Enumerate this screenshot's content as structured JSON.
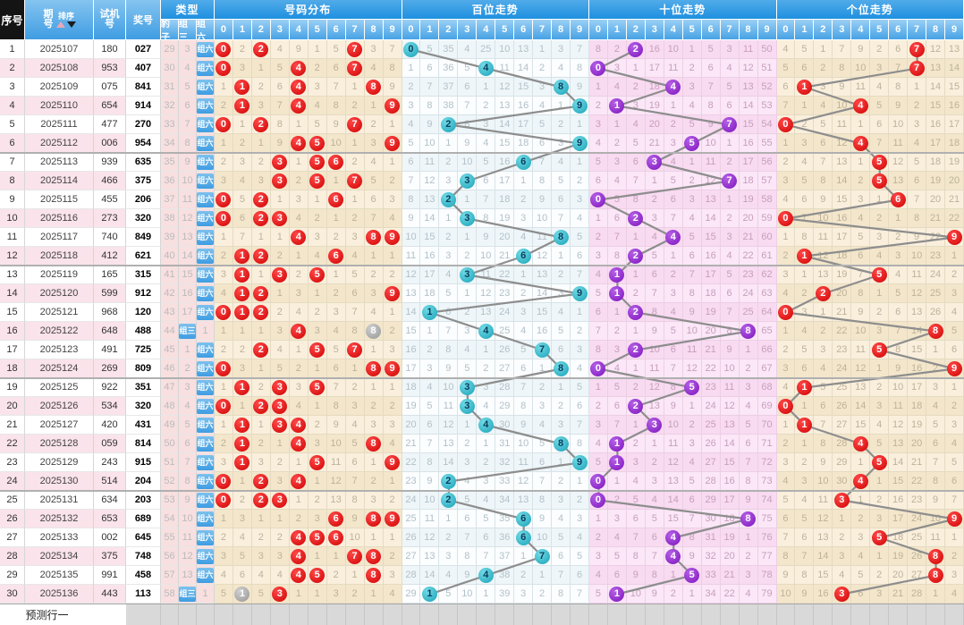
{
  "headers": {
    "seq": "序号",
    "issue": "期号",
    "sort": "排序",
    "test": "试机号",
    "prize": "奖号"
  },
  "type_header": {
    "title": "类型",
    "cols": [
      "豹子",
      "组三",
      "组六"
    ]
  },
  "sections": [
    {
      "key": "dist",
      "title": "号码分布"
    },
    {
      "key": "hundreds",
      "title": "百位走势"
    },
    {
      "key": "tens",
      "title": "十位走势"
    },
    {
      "key": "units",
      "title": "个位走势"
    }
  ],
  "digits": [
    "0",
    "1",
    "2",
    "3",
    "4",
    "5",
    "6",
    "7",
    "8",
    "9"
  ],
  "footer": {
    "prediction": "预测行一"
  },
  "seeds": {
    "dist": [
      0,
      2,
      0,
      4,
      9,
      1,
      5,
      0,
      3,
      7
    ],
    "hundreds": [
      0,
      5,
      35,
      4,
      25,
      10,
      13,
      1,
      3,
      7
    ],
    "tens": [
      8,
      2,
      0,
      16,
      10,
      1,
      5,
      3,
      11,
      50
    ],
    "units": [
      4,
      5,
      1,
      7,
      9,
      2,
      6,
      0,
      12,
      13
    ],
    "type": [
      29,
      3,
      0
    ]
  },
  "rows": [
    {
      "seq": "1",
      "issue": "2025107",
      "test": "180",
      "prize": "027"
    },
    {
      "seq": "2",
      "issue": "2025108",
      "test": "953",
      "prize": "407"
    },
    {
      "seq": "3",
      "issue": "2025109",
      "test": "075",
      "prize": "841"
    },
    {
      "seq": "4",
      "issue": "2025110",
      "test": "654",
      "prize": "914"
    },
    {
      "seq": "5",
      "issue": "2025111",
      "test": "477",
      "prize": "270"
    },
    {
      "seq": "6",
      "issue": "2025112",
      "test": "006",
      "prize": "954"
    },
    {
      "seq": "7",
      "issue": "2025113",
      "test": "939",
      "prize": "635"
    },
    {
      "seq": "8",
      "issue": "2025114",
      "test": "466",
      "prize": "375"
    },
    {
      "seq": "9",
      "issue": "2025115",
      "test": "455",
      "prize": "206"
    },
    {
      "seq": "10",
      "issue": "2025116",
      "test": "273",
      "prize": "320"
    },
    {
      "seq": "11",
      "issue": "2025117",
      "test": "740",
      "prize": "849"
    },
    {
      "seq": "12",
      "issue": "2025118",
      "test": "412",
      "prize": "621"
    },
    {
      "seq": "13",
      "issue": "2025119",
      "test": "165",
      "prize": "315"
    },
    {
      "seq": "14",
      "issue": "2025120",
      "test": "599",
      "prize": "912"
    },
    {
      "seq": "15",
      "issue": "2025121",
      "test": "968",
      "prize": "120"
    },
    {
      "seq": "16",
      "issue": "2025122",
      "test": "648",
      "prize": "488"
    },
    {
      "seq": "17",
      "issue": "2025123",
      "test": "491",
      "prize": "725"
    },
    {
      "seq": "18",
      "issue": "2025124",
      "test": "269",
      "prize": "809"
    },
    {
      "seq": "19",
      "issue": "2025125",
      "test": "922",
      "prize": "351"
    },
    {
      "seq": "20",
      "issue": "2025126",
      "test": "534",
      "prize": "320"
    },
    {
      "seq": "21",
      "issue": "2025127",
      "test": "420",
      "prize": "431"
    },
    {
      "seq": "22",
      "issue": "2025128",
      "test": "059",
      "prize": "814"
    },
    {
      "seq": "23",
      "issue": "2025129",
      "test": "243",
      "prize": "915"
    },
    {
      "seq": "24",
      "issue": "2025130",
      "test": "514",
      "prize": "204"
    },
    {
      "seq": "25",
      "issue": "2025131",
      "test": "634",
      "prize": "203"
    },
    {
      "seq": "26",
      "issue": "2025132",
      "test": "653",
      "prize": "689"
    },
    {
      "seq": "27",
      "issue": "2025133",
      "test": "002",
      "prize": "645"
    },
    {
      "seq": "28",
      "issue": "2025134",
      "test": "375",
      "prize": "748"
    },
    {
      "seq": "29",
      "issue": "2025135",
      "test": "991",
      "prize": "458"
    },
    {
      "seq": "30",
      "issue": "2025136",
      "test": "443",
      "prize": "113"
    }
  ],
  "colors": {
    "header_blue": "#2e97e2",
    "subheader_blue": "#6db8ec",
    "seq_header_black": "#141414",
    "ball_red": "#d90606",
    "ball_teal": "#2bb3c6",
    "ball_purple": "#9127cc",
    "ball_gray": "#a8a8a8",
    "trend_line_gray": "#8d8d8d",
    "dist_bg": "#f6ead3",
    "hundreds_bg": "#f2f9fc",
    "tens_bg": "#f9def2",
    "row_pink": "#fae3ea",
    "type_col_pink": "#f8dfe0"
  }
}
